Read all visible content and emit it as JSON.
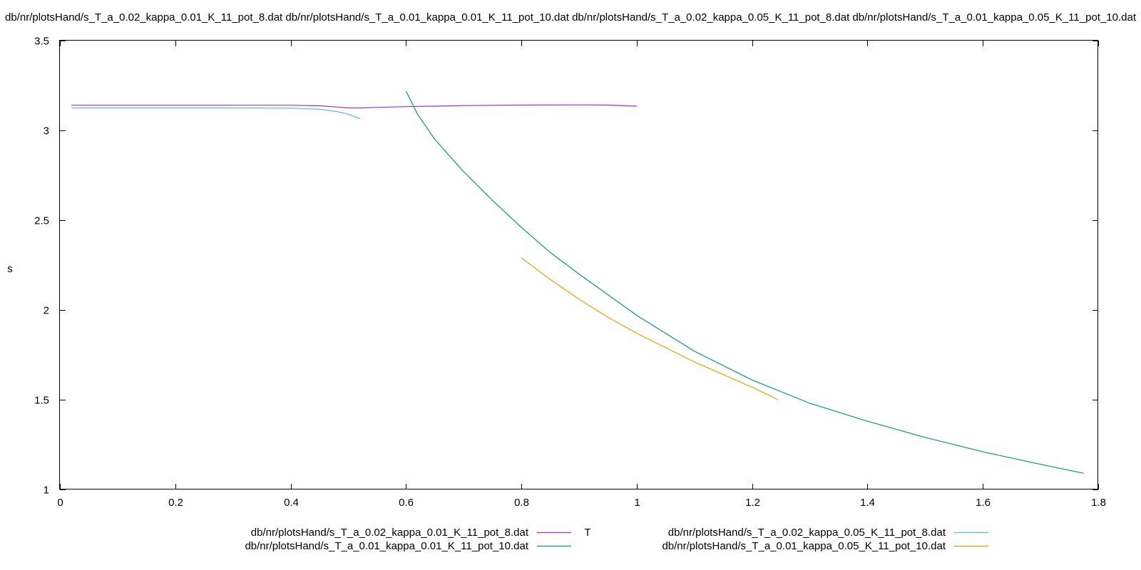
{
  "chart_data": {
    "type": "line",
    "title": "db/nr/plotsHand/s_T_a_0.02_kappa_0.01_K_11_pot_8.dat db/nr/plotsHand/s_T_a_0.01_kappa_0.01_K_11_pot_10.dat db/nr/plotsHand/s_T_a_0.02_kappa_0.05_K_11_pot_8.dat db/nr/plotsHand/s_T_a_0.01_kappa_0.05_K_11_pot_10.dat",
    "xlabel": "T",
    "ylabel": "s",
    "xlim": [
      0,
      1.8
    ],
    "ylim": [
      1,
      3.5
    ],
    "xticks": [
      "0",
      "0.2",
      "0.4",
      "0.6",
      "0.8",
      "1",
      "1.2",
      "1.4",
      "1.6",
      "1.8"
    ],
    "yticks": [
      "1",
      "1.5",
      "2",
      "2.5",
      "3",
      "3.5"
    ],
    "legend_position": "bottom",
    "grid": false,
    "series": [
      {
        "name": "db/nr/plotsHand/s_T_a_0.02_kappa_0.01_K_11_pot_8.dat",
        "color": "#9b30e6",
        "x": [
          0.02,
          0.1,
          0.2,
          0.3,
          0.4,
          0.45,
          0.48,
          0.5,
          0.52,
          0.55,
          0.6,
          0.65,
          0.7,
          0.8,
          0.9,
          0.95,
          1.0
        ],
        "y": [
          3.14,
          3.14,
          3.14,
          3.14,
          3.14,
          3.137,
          3.13,
          3.125,
          3.125,
          3.128,
          3.132,
          3.135,
          3.138,
          3.141,
          3.142,
          3.141,
          3.135
        ]
      },
      {
        "name": "db/nr/plotsHand/s_T_a_0.01_kappa_0.01_K_11_pot_10.dat",
        "color": "#009e73",
        "x": [
          0.6,
          0.62,
          0.65,
          0.7,
          0.75,
          0.8,
          0.85,
          0.9,
          1.0,
          1.1,
          1.2,
          1.3,
          1.4,
          1.5,
          1.6,
          1.7,
          1.775
        ],
        "y": [
          3.22,
          3.09,
          2.95,
          2.77,
          2.61,
          2.46,
          2.32,
          2.2,
          1.97,
          1.77,
          1.61,
          1.48,
          1.38,
          1.29,
          1.21,
          1.14,
          1.09
        ]
      },
      {
        "name": "db/nr/plotsHand/s_T_a_0.02_kappa_0.05_K_11_pot_8.dat",
        "color": "#56b4e9",
        "x": [
          0.02,
          0.1,
          0.2,
          0.3,
          0.4,
          0.45,
          0.48,
          0.5,
          0.51,
          0.52
        ],
        "y": [
          3.125,
          3.125,
          3.125,
          3.125,
          3.124,
          3.118,
          3.105,
          3.09,
          3.078,
          3.065
        ]
      },
      {
        "name": "db/nr/plotsHand/s_T_a_0.01_kappa_0.05_K_11_pot_10.dat",
        "color": "#e69f00",
        "x": [
          0.8,
          0.85,
          0.9,
          0.95,
          1.0,
          1.05,
          1.1,
          1.15,
          1.2,
          1.245
        ],
        "y": [
          2.29,
          2.17,
          2.06,
          1.96,
          1.87,
          1.79,
          1.71,
          1.64,
          1.57,
          1.5
        ]
      }
    ]
  }
}
